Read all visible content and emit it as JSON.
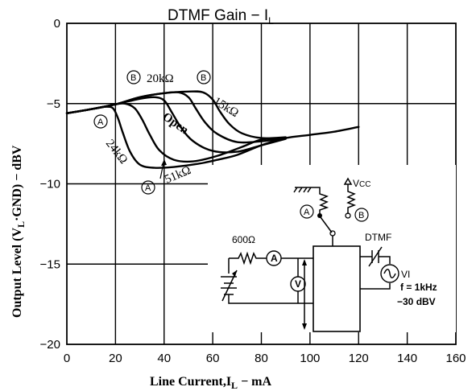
{
  "chart_data": {
    "type": "line",
    "title": "DTMF Gain − I",
    "title_subscript": "L",
    "xlabel": "Line Current,I",
    "xlabel_subscript": "L",
    "xlabel_suffix": " − mA",
    "ylabel": "Output Level (V",
    "ylabel_subscript": "L",
    "ylabel_suffix": "·GND) − dBV",
    "xlim": [
      0,
      160
    ],
    "ylim": [
      -20,
      0
    ],
    "xticks": [
      0,
      20,
      40,
      60,
      80,
      100,
      120,
      140,
      160
    ],
    "xtick_labels": [
      "0",
      "20",
      "40",
      "60",
      "80",
      "100",
      "120",
      "140",
      "160"
    ],
    "yticks": [
      0,
      -5,
      -10,
      -15,
      -20
    ],
    "ytick_labels": [
      "0",
      "−5",
      "−10",
      "−15",
      "−20"
    ],
    "grid": true,
    "series": [
      {
        "name": "24kΩ",
        "x": [
          0,
          10,
          16,
          19,
          21,
          23,
          26,
          30,
          36,
          44,
          54,
          62,
          70,
          80,
          90,
          100,
          110,
          120
        ],
        "values": [
          -5.6,
          -5.35,
          -5.2,
          -5.3,
          -5.9,
          -6.8,
          -8.0,
          -8.8,
          -9.0,
          -8.95,
          -8.75,
          -8.5,
          -8.2,
          -7.6,
          -7.15,
          -6.95,
          -6.75,
          -6.45
        ]
      },
      {
        "name": "51kΩ",
        "x": [
          0,
          10,
          20,
          24,
          28,
          31,
          34,
          38,
          44,
          52,
          62,
          72,
          80,
          90
        ],
        "values": [
          -5.6,
          -5.35,
          -5.05,
          -5.0,
          -5.3,
          -6.0,
          -6.9,
          -7.9,
          -8.5,
          -8.6,
          -8.25,
          -7.7,
          -7.25,
          -7.15
        ]
      },
      {
        "name": "Open",
        "x": [
          0,
          10,
          20,
          30,
          36,
          40,
          43,
          47,
          52,
          60,
          70,
          80,
          90
        ],
        "values": [
          -5.6,
          -5.35,
          -5.05,
          -4.7,
          -4.6,
          -4.8,
          -5.5,
          -6.5,
          -7.35,
          -7.95,
          -8.0,
          -7.6,
          -7.2
        ]
      },
      {
        "name": "20kΩ",
        "x": [
          0,
          10,
          20,
          30,
          40,
          46,
          50,
          53,
          57,
          62,
          70,
          80,
          90
        ],
        "values": [
          -5.6,
          -5.35,
          -5.05,
          -4.6,
          -4.35,
          -4.3,
          -4.6,
          -5.3,
          -6.2,
          -6.9,
          -7.4,
          -7.35,
          -7.15
        ]
      },
      {
        "name": "15kΩ",
        "x": [
          0,
          10,
          20,
          30,
          40,
          50,
          56,
          60,
          63,
          67,
          72,
          80,
          90
        ],
        "values": [
          -5.6,
          -5.35,
          -5.05,
          -4.6,
          -4.35,
          -4.25,
          -4.3,
          -4.75,
          -5.5,
          -6.3,
          -6.85,
          -7.15,
          -7.1
        ]
      }
    ],
    "annotations": {
      "label_20k": "20kΩ",
      "label_15k": "15kΩ",
      "label_open": "Open",
      "label_24k": "24kΩ",
      "label_51k": "51kΩ",
      "marker_a": "A",
      "marker_b": "B"
    }
  },
  "schematic": {
    "vcc_label": "V",
    "vcc_sub": "CC",
    "switch_a": "A",
    "switch_b": "B",
    "resistor_label": "600Ω",
    "ammeter": "A",
    "voltmeter": "V",
    "dtmf_label": "DTMF",
    "source_label": "VI",
    "freq_label": "f = 1kHz",
    "level_label": "−30 dBV"
  }
}
